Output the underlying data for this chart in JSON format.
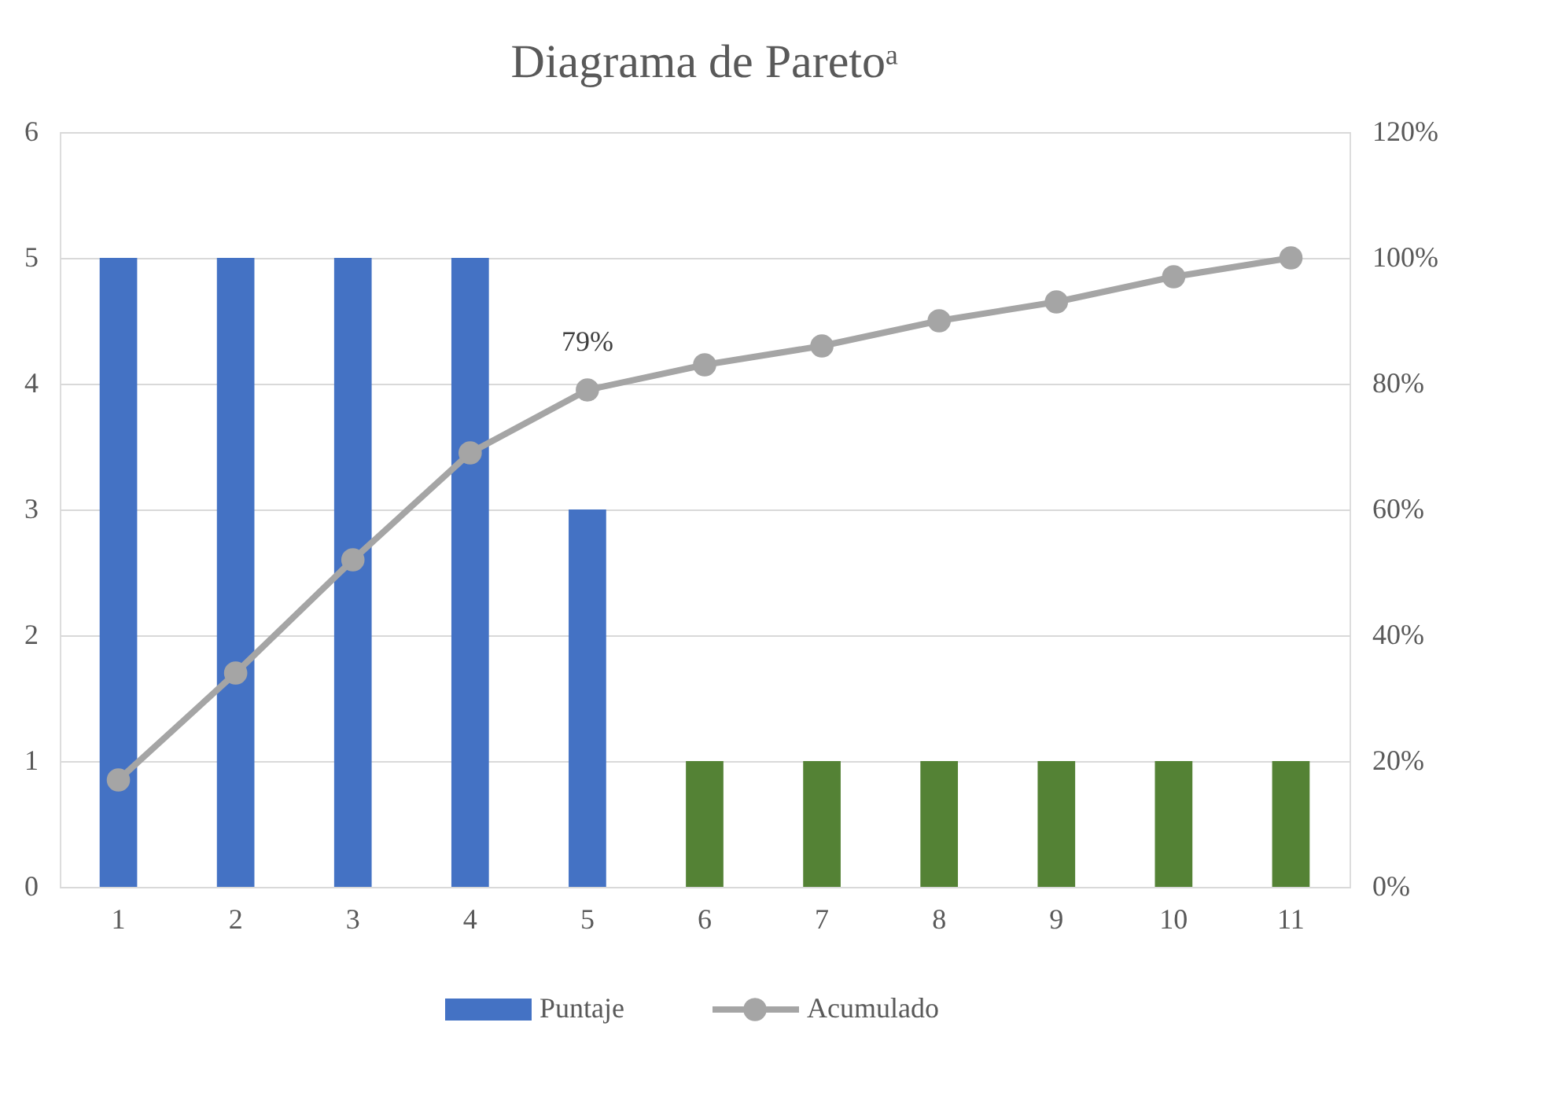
{
  "chart_data": {
    "type": "bar",
    "title": "Diagrama de Paretoᵃ",
    "categories": [
      "1",
      "2",
      "3",
      "4",
      "5",
      "6",
      "7",
      "8",
      "9",
      "10",
      "11"
    ],
    "series": [
      {
        "name": "Puntaje",
        "colors": [
          "#4472c4",
          "#4472c4",
          "#4472c4",
          "#4472c4",
          "#4472c4",
          "#548235",
          "#548235",
          "#548235",
          "#548235",
          "#548235",
          "#548235"
        ],
        "values": [
          5,
          5,
          5,
          5,
          3,
          1,
          1,
          1,
          1,
          1,
          1
        ]
      },
      {
        "name": "Acumulado",
        "type": "line",
        "axis": "y2",
        "color": "#a5a5a5",
        "marker": "circle",
        "values": [
          17,
          34,
          52,
          69,
          79,
          83,
          86,
          90,
          93,
          97,
          100
        ],
        "value_labels": [
          null,
          null,
          null,
          null,
          "79%",
          null,
          null,
          null,
          null,
          null,
          null
        ]
      }
    ],
    "ylim": [
      0,
      6
    ],
    "yticks": [
      0,
      1,
      2,
      3,
      4,
      5,
      6
    ],
    "y2lim": [
      0,
      120
    ],
    "y2ticks": [
      {
        "value": 0,
        "label": "0%"
      },
      {
        "value": 20,
        "label": "20%"
      },
      {
        "value": 40,
        "label": "40%"
      },
      {
        "value": 60,
        "label": "60%"
      },
      {
        "value": 80,
        "label": "80%"
      },
      {
        "value": 100,
        "label": "100%"
      },
      {
        "value": 120,
        "label": "120%"
      }
    ],
    "grid": "y",
    "legend": "bottom"
  }
}
